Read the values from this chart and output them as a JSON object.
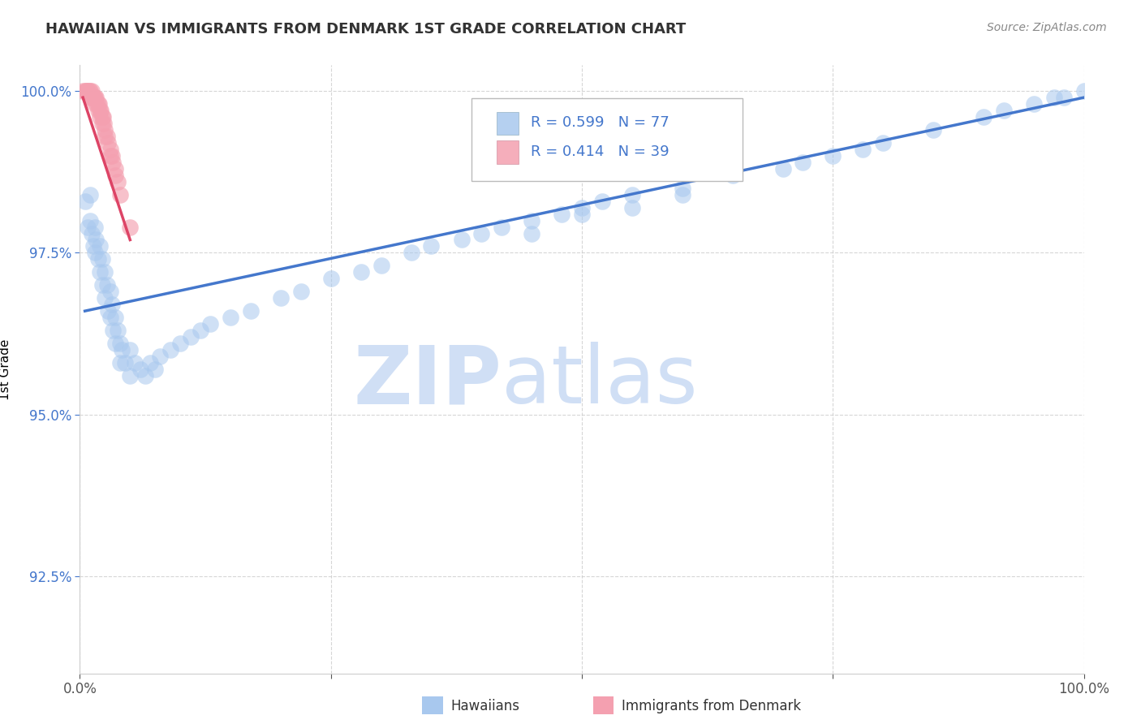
{
  "title": "HAWAIIAN VS IMMIGRANTS FROM DENMARK 1ST GRADE CORRELATION CHART",
  "source_text": "Source: ZipAtlas.com",
  "ylabel": "1st Grade",
  "xlim": [
    0.0,
    1.0
  ],
  "ylim": [
    0.91,
    1.004
  ],
  "yticks": [
    0.925,
    0.95,
    0.975,
    1.0
  ],
  "ytick_labels": [
    "92.5%",
    "95.0%",
    "97.5%",
    "100.0%"
  ],
  "xticks": [
    0.0,
    0.25,
    0.5,
    0.75,
    1.0
  ],
  "xtick_labels": [
    "0.0%",
    "",
    "",
    "",
    "100.0%"
  ],
  "legend_r_blue": "R = 0.599",
  "legend_n_blue": "N = 77",
  "legend_r_pink": "R = 0.414",
  "legend_n_pink": "N = 39",
  "blue_color": "#A8C8EE",
  "pink_color": "#F4A0B0",
  "blue_line_color": "#4477CC",
  "pink_line_color": "#DD4466",
  "background_color": "#ffffff",
  "watermark_color": "#D0DFF5",
  "grid_color": "#CCCCCC",
  "hawaiians_x": [
    0.005,
    0.008,
    0.01,
    0.01,
    0.012,
    0.013,
    0.015,
    0.015,
    0.016,
    0.018,
    0.02,
    0.02,
    0.022,
    0.022,
    0.025,
    0.025,
    0.027,
    0.028,
    0.03,
    0.03,
    0.032,
    0.033,
    0.035,
    0.035,
    0.038,
    0.04,
    0.04,
    0.042,
    0.045,
    0.05,
    0.05,
    0.055,
    0.06,
    0.065,
    0.07,
    0.075,
    0.08,
    0.09,
    0.1,
    0.11,
    0.12,
    0.13,
    0.15,
    0.17,
    0.2,
    0.22,
    0.25,
    0.28,
    0.3,
    0.33,
    0.35,
    0.38,
    0.4,
    0.42,
    0.45,
    0.48,
    0.5,
    0.52,
    0.55,
    0.6,
    0.65,
    0.7,
    0.72,
    0.75,
    0.78,
    0.8,
    0.85,
    0.9,
    0.92,
    0.95,
    0.97,
    0.98,
    1.0,
    0.45,
    0.5,
    0.55,
    0.6
  ],
  "hawaiians_y": [
    0.983,
    0.979,
    0.984,
    0.98,
    0.978,
    0.976,
    0.979,
    0.975,
    0.977,
    0.974,
    0.976,
    0.972,
    0.974,
    0.97,
    0.972,
    0.968,
    0.97,
    0.966,
    0.969,
    0.965,
    0.967,
    0.963,
    0.965,
    0.961,
    0.963,
    0.961,
    0.958,
    0.96,
    0.958,
    0.956,
    0.96,
    0.958,
    0.957,
    0.956,
    0.958,
    0.957,
    0.959,
    0.96,
    0.961,
    0.962,
    0.963,
    0.964,
    0.965,
    0.966,
    0.968,
    0.969,
    0.971,
    0.972,
    0.973,
    0.975,
    0.976,
    0.977,
    0.978,
    0.979,
    0.98,
    0.981,
    0.982,
    0.983,
    0.984,
    0.985,
    0.987,
    0.988,
    0.989,
    0.99,
    0.991,
    0.992,
    0.994,
    0.996,
    0.997,
    0.998,
    0.999,
    0.999,
    1.0,
    0.978,
    0.981,
    0.982,
    0.984
  ],
  "denmark_x": [
    0.003,
    0.005,
    0.006,
    0.007,
    0.008,
    0.009,
    0.01,
    0.01,
    0.012,
    0.012,
    0.013,
    0.014,
    0.015,
    0.015,
    0.016,
    0.017,
    0.018,
    0.018,
    0.019,
    0.02,
    0.02,
    0.021,
    0.022,
    0.022,
    0.023,
    0.024,
    0.025,
    0.025,
    0.027,
    0.028,
    0.03,
    0.03,
    0.032,
    0.033,
    0.035,
    0.035,
    0.038,
    0.04,
    0.05
  ],
  "denmark_y": [
    1.0,
    1.0,
    1.0,
    1.0,
    1.0,
    1.0,
    1.0,
    0.999,
    1.0,
    0.999,
    0.999,
    0.999,
    0.999,
    0.998,
    0.999,
    0.998,
    0.998,
    0.997,
    0.998,
    0.997,
    0.996,
    0.997,
    0.996,
    0.995,
    0.996,
    0.995,
    0.994,
    0.993,
    0.993,
    0.992,
    0.991,
    0.99,
    0.99,
    0.989,
    0.988,
    0.987,
    0.986,
    0.984,
    0.979
  ],
  "blue_trendline_x": [
    0.005,
    1.0
  ],
  "blue_trendline_y": [
    0.966,
    0.999
  ],
  "pink_trendline_x": [
    0.003,
    0.05
  ],
  "pink_trendline_y": [
    0.999,
    0.977
  ]
}
